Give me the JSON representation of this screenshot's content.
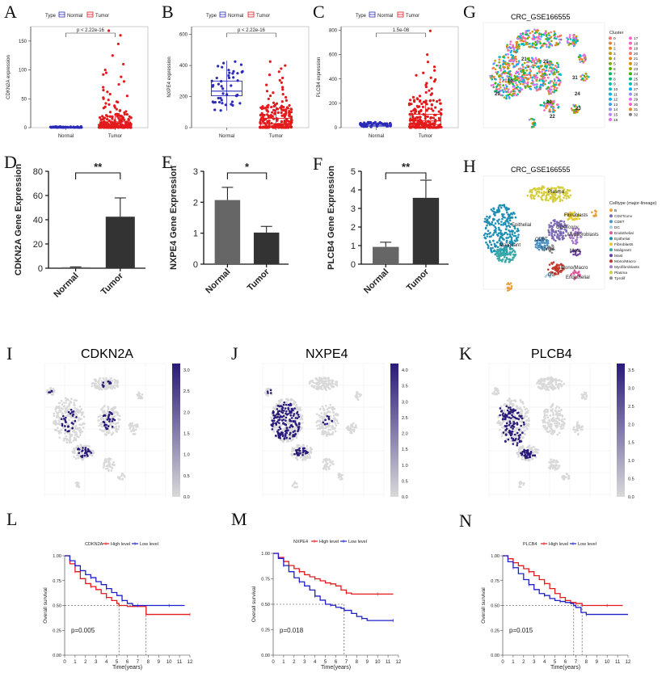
{
  "colors": {
    "normal": "#2b2bb8",
    "tumor": "#e31a1c",
    "bar_dark": "#333333",
    "bar_gray": "#666666",
    "high": "#e31a1c",
    "low": "#1f1fc8",
    "feature_low": "#d9d9d9",
    "feature_high": "#2a1a7a"
  },
  "panel_labels": {
    "A": "A",
    "B": "B",
    "C": "C",
    "D": "D",
    "E": "E",
    "F": "F",
    "G": "G",
    "H": "H",
    "I": "I",
    "J": "J",
    "K": "K",
    "L": "L",
    "M": "M",
    "N": "N"
  },
  "legend_type": {
    "title": "Type",
    "normal": "Normal",
    "tumor": "Tumor"
  },
  "chart_data": [
    {
      "id": "A",
      "type": "boxplot",
      "ylabel": "CDKN2A expression",
      "categories": [
        "Normal",
        "Tumor"
      ],
      "yticks": [
        0,
        50,
        100,
        150
      ],
      "ylim": [
        0,
        175
      ],
      "pvalue": "p < 2.22e-16",
      "boxes": [
        {
          "q1": 0,
          "median": 0.5,
          "q3": 1,
          "lo": 0,
          "hi": 2
        },
        {
          "q1": 1,
          "median": 4,
          "q3": 10,
          "lo": 0,
          "hi": 25
        }
      ],
      "outliers_tumor": [
        168,
        160,
        145,
        125,
        110,
        100,
        95,
        92,
        88,
        80,
        75,
        70,
        65,
        62,
        58,
        55,
        52,
        50,
        48,
        45,
        44,
        42,
        40,
        38,
        36,
        35,
        34,
        32,
        30,
        29,
        28,
        27,
        26
      ]
    },
    {
      "id": "B",
      "type": "boxplot",
      "ylabel": "NXPE4 expression",
      "categories": [
        "Normal",
        "Tumor"
      ],
      "yticks": [
        0,
        200,
        400,
        600
      ],
      "ylim": [
        0,
        650
      ],
      "pvalue": "p < 2.22e-16",
      "boxes": [
        {
          "q1": 205,
          "median": 235,
          "q3": 300,
          "lo": 110,
          "hi": 430
        },
        {
          "q1": 5,
          "median": 25,
          "q3": 60,
          "lo": 0,
          "hi": 150
        }
      ],
      "outliers_tumor": [
        425,
        400,
        380,
        360,
        340,
        320,
        305,
        290,
        275,
        260,
        245,
        235,
        225,
        215,
        205,
        195,
        185,
        175,
        168,
        160,
        155
      ]
    },
    {
      "id": "C",
      "type": "boxplot",
      "ylabel": "PLCB4 expression",
      "categories": [
        "Normal",
        "Tumor"
      ],
      "yticks": [
        0,
        200,
        400,
        600,
        800
      ],
      "ylim": [
        0,
        830
      ],
      "pvalue": "1.5e-08",
      "boxes": [
        {
          "q1": 12,
          "median": 20,
          "q3": 30,
          "lo": 5,
          "hi": 45
        },
        {
          "q1": 25,
          "median": 55,
          "q3": 110,
          "lo": 0,
          "hi": 230
        }
      ],
      "outliers_tumor": [
        795,
        600,
        540,
        500,
        470,
        450,
        430,
        410,
        395,
        380,
        365,
        350,
        335,
        320,
        305,
        290,
        280,
        270,
        260,
        250,
        240,
        235
      ]
    },
    {
      "id": "D",
      "type": "bar",
      "ylabel": "CDKN2A Gene Expression",
      "categories": [
        "Normal",
        "Tumor"
      ],
      "values": [
        0.8,
        42.5
      ],
      "errors": [
        0.3,
        15.5
      ],
      "yticks": [
        0,
        20,
        40,
        60,
        80
      ],
      "ylim": [
        0,
        80
      ],
      "sig": "**"
    },
    {
      "id": "E",
      "type": "bar",
      "ylabel": "NXPE4 Gene Expression",
      "categories": [
        "Normal",
        "Tumor"
      ],
      "values": [
        2.07,
        1.02
      ],
      "errors": [
        0.41,
        0.2
      ],
      "yticks": [
        0,
        1,
        2,
        3
      ],
      "ylim": [
        0,
        3
      ],
      "sig": "*"
    },
    {
      "id": "F",
      "type": "bar",
      "ylabel": "PLCB4 Gene Expression",
      "categories": [
        "Normal",
        "Tumor"
      ],
      "values": [
        0.93,
        3.57
      ],
      "errors": [
        0.25,
        0.95
      ],
      "yticks": [
        0,
        1,
        2,
        3,
        4,
        5
      ],
      "ylim": [
        0,
        5
      ],
      "sig": "**"
    },
    {
      "id": "L",
      "type": "line",
      "title": "CDKN2A",
      "xlabel": "Time(years)",
      "ylabel": "Overall survival",
      "legend": [
        "High level",
        "Low level"
      ],
      "pvalue": "p=0.005",
      "xticks": [
        0,
        1,
        2,
        3,
        4,
        5,
        6,
        7,
        8,
        9,
        10,
        11,
        12
      ],
      "yticks": [
        "0.00",
        "0.25",
        "0.50",
        "0.75",
        "1.00"
      ],
      "median_times": [
        5.2,
        7.8
      ],
      "series": [
        {
          "name": "High level",
          "x": [
            0,
            0.5,
            1,
            1.5,
            2,
            2.5,
            3,
            3.5,
            4,
            4.5,
            5,
            5.2,
            6,
            7,
            7.8,
            8,
            10,
            12
          ],
          "y": [
            1,
            0.92,
            0.84,
            0.77,
            0.72,
            0.69,
            0.66,
            0.62,
            0.58,
            0.55,
            0.52,
            0.5,
            0.49,
            0.49,
            0.41,
            0.41,
            0.41,
            0.41
          ]
        },
        {
          "name": "Low level",
          "x": [
            0,
            0.5,
            1,
            1.5,
            2,
            2.5,
            3,
            3.5,
            4,
            4.5,
            5,
            5.5,
            6,
            6.5,
            7,
            7.5,
            8,
            10,
            11.5
          ],
          "y": [
            1,
            0.95,
            0.9,
            0.85,
            0.81,
            0.78,
            0.74,
            0.71,
            0.67,
            0.63,
            0.6,
            0.55,
            0.52,
            0.5,
            0.5,
            0.5,
            0.5,
            0.5,
            0.5
          ]
        }
      ]
    },
    {
      "id": "M",
      "type": "line",
      "title": "NXPE4",
      "xlabel": "Time(years)",
      "ylabel": "Overall survival",
      "legend": [
        "High level",
        "Low level"
      ],
      "pvalue": "p=0.018",
      "xticks": [
        0,
        1,
        2,
        3,
        4,
        5,
        6,
        7,
        8,
        9,
        10,
        11,
        12
      ],
      "yticks": [
        "0.00",
        "0.25",
        "0.50",
        "0.75",
        "1.00"
      ],
      "median_times": [
        6.8
      ],
      "series": [
        {
          "name": "High level",
          "x": [
            0,
            0.5,
            1,
            1.5,
            2,
            2.5,
            3,
            3.5,
            4,
            4.5,
            5,
            5.5,
            6,
            6.5,
            7,
            7.5,
            8,
            10,
            11.5
          ],
          "y": [
            1,
            0.96,
            0.92,
            0.88,
            0.85,
            0.82,
            0.79,
            0.77,
            0.75,
            0.73,
            0.71,
            0.7,
            0.68,
            0.64,
            0.61,
            0.6,
            0.6,
            0.6,
            0.6
          ]
        },
        {
          "name": "Low level",
          "x": [
            0,
            0.5,
            1,
            1.5,
            2,
            2.5,
            3,
            3.5,
            4,
            4.5,
            5,
            5.5,
            6,
            6.5,
            6.8,
            7.5,
            8,
            8.5,
            9,
            10,
            11.5
          ],
          "y": [
            1,
            0.95,
            0.88,
            0.82,
            0.76,
            0.72,
            0.68,
            0.64,
            0.58,
            0.54,
            0.5,
            0.49,
            0.47,
            0.46,
            0.44,
            0.41,
            0.38,
            0.36,
            0.34,
            0.34,
            0.34
          ]
        }
      ]
    },
    {
      "id": "N",
      "type": "line",
      "title": "PLCB4",
      "xlabel": "Time(years)",
      "ylabel": "Overall survival",
      "legend": [
        "High level",
        "Low level"
      ],
      "pvalue": "p=0.015",
      "xticks": [
        0,
        1,
        2,
        3,
        4,
        5,
        6,
        7,
        8,
        9,
        10,
        11,
        12
      ],
      "yticks": [
        "0.00",
        "0.25",
        "0.50",
        "0.75",
        "1.00"
      ],
      "median_times": [
        6.8,
        7.6
      ],
      "series": [
        {
          "name": "High level",
          "x": [
            0,
            0.5,
            1,
            1.5,
            2,
            2.5,
            3,
            3.5,
            4,
            4.5,
            5,
            5.5,
            6,
            6.5,
            7,
            7.6,
            8,
            10,
            11.5
          ],
          "y": [
            1,
            0.97,
            0.93,
            0.9,
            0.87,
            0.84,
            0.8,
            0.76,
            0.72,
            0.67,
            0.62,
            0.58,
            0.55,
            0.53,
            0.52,
            0.5,
            0.5,
            0.5,
            0.5
          ]
        },
        {
          "name": "Low level",
          "x": [
            0,
            0.5,
            1,
            1.5,
            2,
            2.5,
            3,
            3.5,
            4,
            4.5,
            5,
            5.5,
            6,
            6.5,
            6.8,
            7,
            7.5,
            8,
            10,
            12
          ],
          "y": [
            1,
            0.94,
            0.88,
            0.82,
            0.76,
            0.71,
            0.66,
            0.62,
            0.6,
            0.57,
            0.55,
            0.54,
            0.53,
            0.52,
            0.5,
            0.48,
            0.43,
            0.41,
            0.41,
            0.41
          ]
        }
      ]
    }
  ],
  "umap_g": {
    "title": "CRC_GSE166555",
    "legend_title": "Cluster",
    "clusters": [
      "0",
      "1",
      "2",
      "3",
      "4",
      "5",
      "6",
      "7",
      "8",
      "9",
      "10",
      "11",
      "12",
      "13",
      "14",
      "15",
      "16",
      "17",
      "18",
      "19",
      "20",
      "21",
      "22",
      "23",
      "24",
      "25",
      "26",
      "27",
      "28",
      "29",
      "30",
      "31",
      "32"
    ],
    "labels": [
      "25",
      "21",
      "10",
      "31",
      "24",
      "29",
      "20",
      "22",
      "23"
    ],
    "palette": [
      "#f8766d",
      "#ea8331",
      "#d89000",
      "#c09b00",
      "#a3a500",
      "#7cae00",
      "#39b600",
      "#00bb4e",
      "#00bf7d",
      "#00c1a3",
      "#00bfc4",
      "#00bae0",
      "#00b0f6",
      "#35a2ff",
      "#9590ff",
      "#c77cff",
      "#e76bf3",
      "#fa62db",
      "#ff62bc",
      "#ff6c91",
      "#f8766d",
      "#ea8331",
      "#d89000",
      "#a3a500",
      "#39b600",
      "#00bf7d",
      "#00bfc4",
      "#00b0f6",
      "#9590ff",
      "#e76bf3",
      "#ff62bc",
      "#e7861b",
      "#7f7f7f"
    ]
  },
  "umap_h": {
    "title": "CRC_GSE166555",
    "legend_title": "Celltype (major-lineage)",
    "celltypes": [
      "B",
      "CD4Tconv",
      "CD8T",
      "DC",
      "Endothelial",
      "Epithelial",
      "Fibroblasts",
      "Malignant",
      "Mast",
      "Mono/Macro",
      "Myofibroblasts",
      "Plasma",
      "Tprolif"
    ],
    "colors": [
      "#e6a33a",
      "#7b6ab3",
      "#4d93c7",
      "#a6cee3",
      "#e05a9b",
      "#1e8fb4",
      "#e8c830",
      "#3aa7a8",
      "#6b3fa0",
      "#c0392b",
      "#a77bc8",
      "#d4cc3a",
      "#8d8d8d"
    ],
    "labels": [
      "Plasma",
      "Epithelial",
      "Fibroblasts",
      "CD4Tconv",
      "Myofibroblasts",
      "Malignant",
      "CD8T",
      "Tprolif",
      "Mast",
      "Mono/Macro",
      "DC",
      "Endothelial"
    ]
  },
  "feature_plots": [
    {
      "title": "CDKN2A",
      "scale": [
        "3.0",
        "2.5",
        "2.0",
        "1.5",
        "1.0",
        "0.5",
        "0.0"
      ]
    },
    {
      "title": "NXPE4",
      "scale": [
        "4.0",
        "3.5",
        "3.0",
        "2.5",
        "2.0",
        "1.5",
        "1.0",
        "0.5",
        "0.0"
      ]
    },
    {
      "title": "PLCB4",
      "scale": [
        "3.5",
        "3.0",
        "2.5",
        "2.0",
        "1.5",
        "1.0",
        "0.5",
        "0.0"
      ]
    }
  ]
}
